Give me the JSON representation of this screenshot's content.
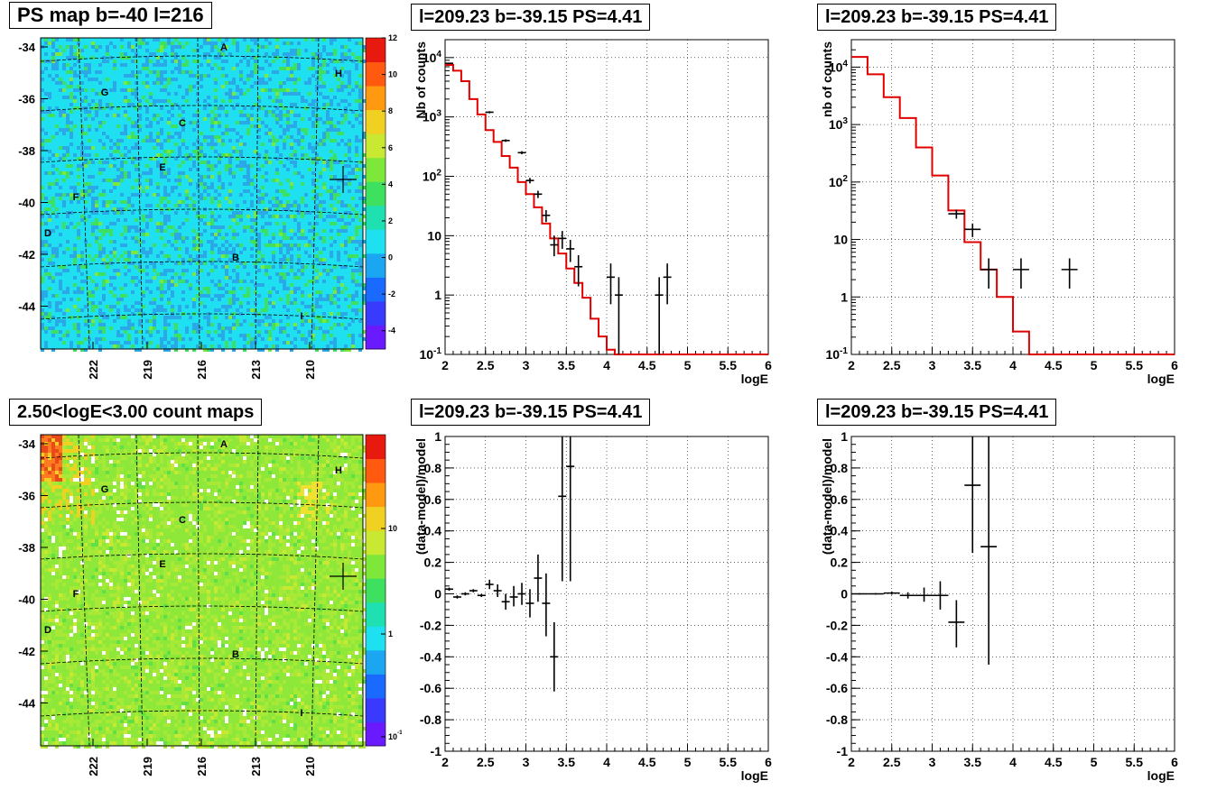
{
  "panels": {
    "map_ps": {
      "title": "PS map b=-40 l=216"
    },
    "map_counts": {
      "title": "2.50<logE<3.00 count maps"
    },
    "spec1": {
      "title": "l=209.23 b=-39.15 PS=4.41"
    },
    "spec2": {
      "title": "l=209.23 b=-39.15 PS=4.41"
    },
    "res1": {
      "title": "l=209.23 b=-39.15 PS=4.41"
    },
    "res2": {
      "title": "l=209.23 b=-39.15 PS=4.41"
    }
  },
  "chart_data": [
    {
      "id": "map_ps",
      "type": "heatmap",
      "title": "PS map b=-40 l=216",
      "y_ticks": [
        "-34",
        "-36",
        "-38",
        "-40",
        "-42",
        "-44"
      ],
      "x_ticks": [
        "222",
        "219",
        "216",
        "213",
        "210"
      ],
      "colorbar_ticks": [
        "12",
        "10",
        "8",
        "6",
        "4",
        "2",
        "0",
        "-2",
        "-4"
      ],
      "zlim": [
        -5,
        12
      ],
      "labels": [
        "A",
        "H",
        "G",
        "C",
        "E",
        "F",
        "D",
        "B",
        "I"
      ],
      "colors": {
        "background": "#1ee0f0",
        "speckle_blue": "#2aa8e8",
        "speckle_green": "#3ee060"
      }
    },
    {
      "id": "map_counts",
      "type": "heatmap",
      "title": "2.50<logE<3.00 count maps",
      "y_ticks": [
        "-34",
        "-36",
        "-38",
        "-40",
        "-42",
        "-44"
      ],
      "x_ticks": [
        "222",
        "219",
        "216",
        "213",
        "210"
      ],
      "colorbar_ticks": [
        "10",
        "1",
        "10-1"
      ],
      "scale": "log",
      "labels": [
        "A",
        "H",
        "G",
        "C",
        "E",
        "F",
        "D",
        "B",
        "I"
      ],
      "colors": {
        "background": "#8ee83a",
        "hot": "#e84a1a"
      }
    },
    {
      "id": "spec1",
      "type": "line",
      "title": "l=209.23 b=-39.15 PS=4.41",
      "xlabel": "logE",
      "ylabel": "Nb of counts",
      "xlim": [
        2,
        6
      ],
      "ylim": [
        0.1,
        20000
      ],
      "yscale": "log",
      "x_ticks": [
        "2",
        "2.5",
        "3",
        "3.5",
        "4",
        "4.5",
        "5",
        "5.5",
        "6"
      ],
      "y_ticks": [
        "10-1",
        "1",
        "10",
        "102",
        "103",
        "104"
      ],
      "grid": true,
      "model_step": {
        "color": "#e00000",
        "edges": [
          2.0,
          2.1,
          2.2,
          2.3,
          2.4,
          2.5,
          2.6,
          2.7,
          2.8,
          2.9,
          3.0,
          3.1,
          3.2,
          3.3,
          3.4,
          3.5,
          3.6,
          3.7,
          3.8,
          3.9,
          4.0,
          4.1,
          4.2,
          6.0
        ],
        "values": [
          7500,
          6000,
          4000,
          2000,
          1100,
          600,
          380,
          220,
          140,
          80,
          50,
          30,
          16,
          9,
          5,
          2.8,
          1.6,
          0.9,
          0.4,
          0.2,
          0.12,
          0.1,
          0.1
        ]
      },
      "points": [
        {
          "x": 2.05,
          "y": 8000,
          "dx": 0.05,
          "lo": 7800,
          "hi": 8200
        },
        {
          "x": 2.55,
          "y": 1200,
          "dx": 0.05,
          "lo": 1150,
          "hi": 1250
        },
        {
          "x": 2.75,
          "y": 400,
          "dx": 0.05,
          "lo": 380,
          "hi": 420
        },
        {
          "x": 2.95,
          "y": 250,
          "dx": 0.05,
          "lo": 235,
          "hi": 265
        },
        {
          "x": 3.05,
          "y": 85,
          "dx": 0.05,
          "lo": 76,
          "hi": 94
        },
        {
          "x": 3.15,
          "y": 50,
          "dx": 0.05,
          "lo": 43,
          "hi": 57
        },
        {
          "x": 3.25,
          "y": 22,
          "dx": 0.05,
          "lo": 17,
          "hi": 27
        },
        {
          "x": 3.35,
          "y": 7,
          "dx": 0.05,
          "lo": 4.5,
          "hi": 10
        },
        {
          "x": 3.45,
          "y": 9,
          "dx": 0.05,
          "lo": 6,
          "hi": 12
        },
        {
          "x": 3.55,
          "y": 6,
          "dx": 0.05,
          "lo": 3.6,
          "hi": 8.5
        },
        {
          "x": 3.65,
          "y": 3,
          "dx": 0.05,
          "lo": 1.4,
          "hi": 4.7
        },
        {
          "x": 4.05,
          "y": 2,
          "dx": 0.05,
          "lo": 0.7,
          "hi": 3.4
        },
        {
          "x": 4.15,
          "y": 1,
          "dx": 0.05,
          "lo": 0.1,
          "hi": 2.0
        },
        {
          "x": 4.65,
          "y": 1,
          "dx": 0.05,
          "lo": 0.1,
          "hi": 2.0
        },
        {
          "x": 4.75,
          "y": 2,
          "dx": 0.05,
          "lo": 0.7,
          "hi": 3.4
        }
      ]
    },
    {
      "id": "spec2",
      "type": "line",
      "title": "l=209.23 b=-39.15 PS=4.41",
      "xlabel": "logE",
      "ylabel": "nb of counts",
      "xlim": [
        2,
        6
      ],
      "ylim": [
        0.1,
        30000
      ],
      "yscale": "log",
      "x_ticks": [
        "2",
        "2.5",
        "3",
        "3.5",
        "4",
        "4.5",
        "5",
        "5.5",
        "6"
      ],
      "y_ticks": [
        "10-1",
        "1",
        "10",
        "102",
        "103",
        "104"
      ],
      "grid": true,
      "model_step": {
        "color": "#e00000",
        "edges": [
          2.0,
          2.2,
          2.4,
          2.6,
          2.8,
          3.0,
          3.2,
          3.4,
          3.6,
          3.8,
          4.0,
          4.2,
          6.0
        ],
        "values": [
          15000,
          7500,
          3000,
          1300,
          400,
          130,
          32,
          9,
          3,
          1.0,
          0.25,
          0.1
        ]
      },
      "points": [
        {
          "x": 3.3,
          "y": 28,
          "dx": 0.1,
          "lo": 23,
          "hi": 33
        },
        {
          "x": 3.5,
          "y": 15,
          "dx": 0.1,
          "lo": 11,
          "hi": 19
        },
        {
          "x": 3.7,
          "y": 3,
          "dx": 0.1,
          "lo": 1.4,
          "hi": 4.7
        },
        {
          "x": 4.1,
          "y": 3,
          "dx": 0.1,
          "lo": 1.4,
          "hi": 4.7
        },
        {
          "x": 4.7,
          "y": 3,
          "dx": 0.1,
          "lo": 1.4,
          "hi": 4.7
        }
      ]
    },
    {
      "id": "res1",
      "type": "scatter",
      "title": "l=209.23 b=-39.15 PS=4.41",
      "xlabel": "logE",
      "ylabel": "(data-model)/model",
      "xlim": [
        2,
        6
      ],
      "ylim": [
        -1,
        1
      ],
      "x_ticks": [
        "2",
        "2.5",
        "3",
        "3.5",
        "4",
        "4.5",
        "5",
        "5.5",
        "6"
      ],
      "y_ticks": [
        "1",
        "0.8",
        "0.6",
        "0.4",
        "0.2",
        "0",
        "-0.2",
        "-0.4",
        "-0.6",
        "-0.8",
        "-1"
      ],
      "grid": true,
      "points": [
        {
          "x": 2.05,
          "y": 0.03,
          "dx": 0.05,
          "lo": 0.02,
          "hi": 0.04
        },
        {
          "x": 2.15,
          "y": -0.02,
          "dx": 0.05,
          "lo": -0.03,
          "hi": -0.01
        },
        {
          "x": 2.25,
          "y": 0.0,
          "dx": 0.05,
          "lo": -0.01,
          "hi": 0.01
        },
        {
          "x": 2.35,
          "y": 0.02,
          "dx": 0.05,
          "lo": 0.01,
          "hi": 0.03
        },
        {
          "x": 2.45,
          "y": -0.01,
          "dx": 0.05,
          "lo": -0.02,
          "hi": 0.0
        },
        {
          "x": 2.55,
          "y": 0.06,
          "dx": 0.05,
          "lo": 0.03,
          "hi": 0.09
        },
        {
          "x": 2.65,
          "y": 0.02,
          "dx": 0.05,
          "lo": -0.02,
          "hi": 0.06
        },
        {
          "x": 2.75,
          "y": -0.05,
          "dx": 0.05,
          "lo": -0.1,
          "hi": 0.0
        },
        {
          "x": 2.85,
          "y": -0.02,
          "dx": 0.05,
          "lo": -0.08,
          "hi": 0.05
        },
        {
          "x": 2.95,
          "y": 0.0,
          "dx": 0.05,
          "lo": -0.07,
          "hi": 0.07
        },
        {
          "x": 3.05,
          "y": -0.06,
          "dx": 0.05,
          "lo": -0.15,
          "hi": 0.03
        },
        {
          "x": 3.15,
          "y": 0.1,
          "dx": 0.05,
          "lo": -0.05,
          "hi": 0.25
        },
        {
          "x": 3.25,
          "y": -0.06,
          "dx": 0.05,
          "lo": -0.27,
          "hi": 0.13
        },
        {
          "x": 3.35,
          "y": -0.4,
          "dx": 0.05,
          "lo": -0.62,
          "hi": -0.18
        },
        {
          "x": 3.45,
          "y": 0.62,
          "dx": 0.05,
          "lo": 0.08,
          "hi": 1.0
        },
        {
          "x": 3.55,
          "y": 0.81,
          "dx": 0.05,
          "lo": 0.08,
          "hi": 1.0
        }
      ]
    },
    {
      "id": "res2",
      "type": "scatter",
      "title": "l=209.23 b=-39.15 PS=4.41",
      "xlabel": "logE",
      "ylabel": "(data-model)/model",
      "xlim": [
        2,
        6
      ],
      "ylim": [
        -1,
        1
      ],
      "x_ticks": [
        "2",
        "2.5",
        "3",
        "3.5",
        "4",
        "4.5",
        "5",
        "5.5",
        "6"
      ],
      "y_ticks": [
        "1",
        "0.8",
        "0.6",
        "0.4",
        "0.2",
        "0",
        "-0.2",
        "-0.4",
        "-0.6",
        "-0.8",
        "-1"
      ],
      "grid": true,
      "points": [
        {
          "x": 2.1,
          "y": 0.0,
          "dx": 0.1,
          "lo": -0.005,
          "hi": 0.005
        },
        {
          "x": 2.3,
          "y": 0.0,
          "dx": 0.1,
          "lo": -0.005,
          "hi": 0.005
        },
        {
          "x": 2.5,
          "y": 0.005,
          "dx": 0.1,
          "lo": -0.005,
          "hi": 0.015
        },
        {
          "x": 2.7,
          "y": -0.01,
          "dx": 0.1,
          "lo": -0.03,
          "hi": 0.01
        },
        {
          "x": 2.9,
          "y": -0.01,
          "dx": 0.1,
          "lo": -0.05,
          "hi": 0.04
        },
        {
          "x": 3.1,
          "y": -0.01,
          "dx": 0.1,
          "lo": -0.1,
          "hi": 0.08
        },
        {
          "x": 3.3,
          "y": -0.18,
          "dx": 0.1,
          "lo": -0.34,
          "hi": -0.04
        },
        {
          "x": 3.5,
          "y": 0.69,
          "dx": 0.1,
          "lo": 0.26,
          "hi": 1.0
        },
        {
          "x": 3.7,
          "y": 0.3,
          "dx": 0.1,
          "lo": -0.45,
          "hi": 1.0
        }
      ]
    }
  ]
}
